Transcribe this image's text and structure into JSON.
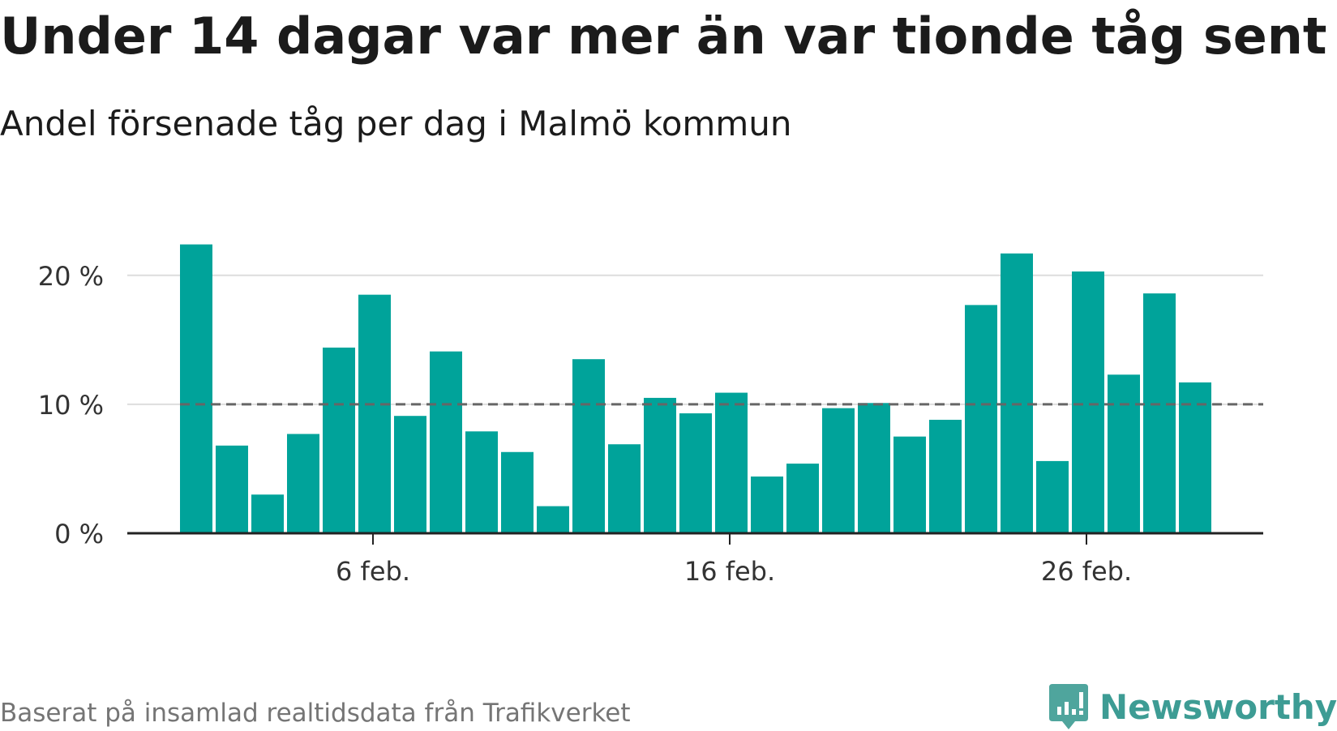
{
  "title": "Under 14 dagar var mer än var tionde tåg sent",
  "subtitle": "Andel försenade tåg per dag i Malmö kommun",
  "source": "Baserat på insamlad realtidsdata från Trafikverket",
  "brand": {
    "name": "Newsworthy",
    "icon": "newsworthy-logo-icon",
    "color": "#3d9c94"
  },
  "chart_data": {
    "type": "bar",
    "xlabel": "",
    "ylabel": "",
    "x_start": "1 feb.",
    "categories": [
      "1 feb.",
      "2 feb.",
      "3 feb.",
      "4 feb.",
      "5 feb.",
      "6 feb.",
      "7 feb.",
      "8 feb.",
      "9 feb.",
      "10 feb.",
      "11 feb.",
      "12 feb.",
      "13 feb.",
      "14 feb.",
      "15 feb.",
      "16 feb.",
      "17 feb.",
      "18 feb.",
      "19 feb.",
      "20 feb.",
      "21 feb.",
      "22 feb.",
      "23 feb.",
      "24 feb.",
      "25 feb.",
      "26 feb.",
      "27 feb.",
      "28 feb.",
      "29 feb."
    ],
    "values": [
      22.4,
      6.8,
      3.0,
      7.7,
      14.4,
      18.5,
      9.1,
      14.1,
      7.9,
      6.3,
      2.1,
      13.5,
      6.9,
      10.5,
      9.3,
      10.9,
      4.4,
      5.4,
      9.7,
      10.1,
      7.5,
      8.8,
      17.7,
      21.7,
      5.6,
      20.3,
      12.3,
      18.6,
      11.7
    ],
    "ylim": [
      0,
      22.5
    ],
    "yticks": [
      0,
      10,
      20
    ],
    "ytick_labels": [
      "0 %",
      "10 %",
      "20 %"
    ],
    "xtick_labels": [
      {
        "category": "6 feb.",
        "label": "6 feb."
      },
      {
        "category": "16 feb.",
        "label": "16 feb."
      },
      {
        "category": "26 feb.",
        "label": "26 feb."
      }
    ],
    "reference_line": 10,
    "grid": true,
    "bar_color": "#00a39a",
    "reference_color": "#666666",
    "grid_color": "#dddddd",
    "axis_color": "#222222"
  }
}
